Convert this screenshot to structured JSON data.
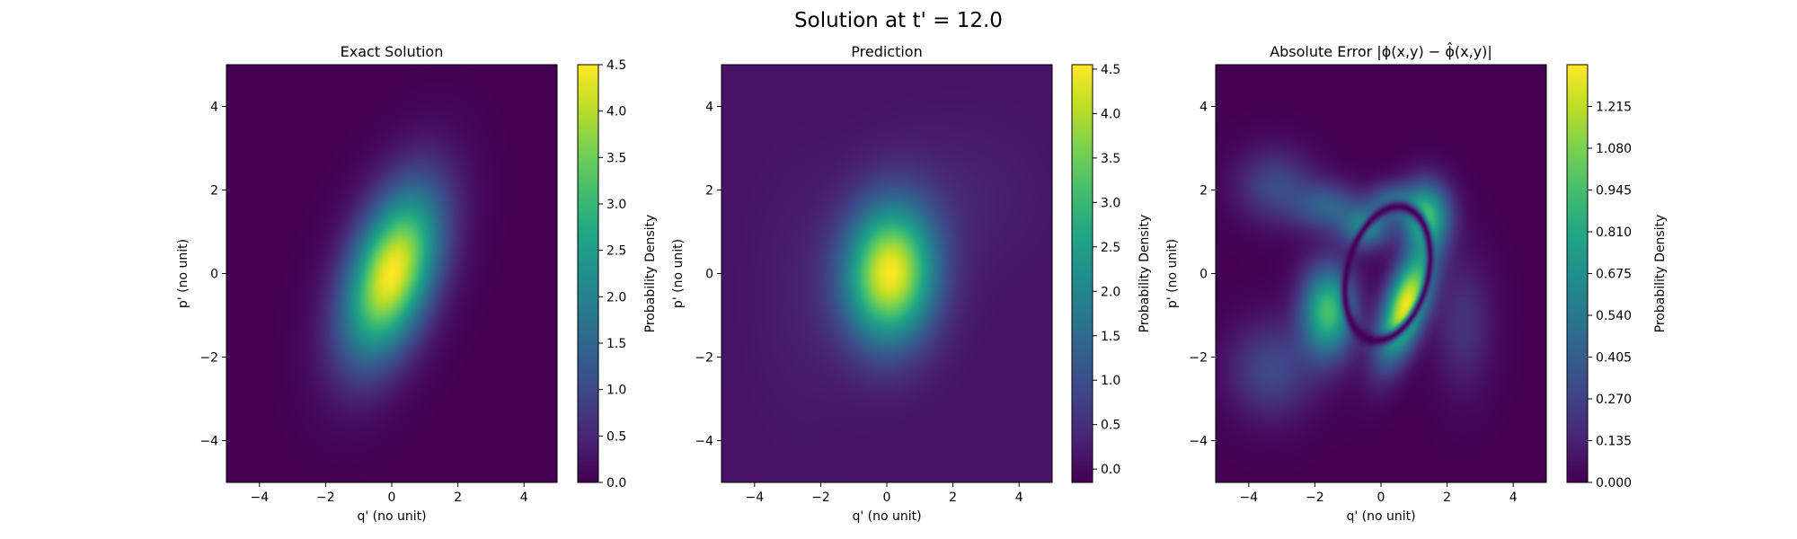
{
  "figure": {
    "suptitle": "Solution at t' = 12.0"
  },
  "chart_data": [
    {
      "type": "heatmap",
      "title": "Exact Solution",
      "xlabel": "q' (no unit)",
      "ylabel": "p' (no unit)",
      "xlim": [
        -5,
        5
      ],
      "ylim": [
        -5,
        5
      ],
      "xticks": [
        -4,
        -2,
        0,
        2,
        4
      ],
      "yticks": [
        -4,
        -2,
        0,
        2,
        4
      ],
      "xtick_labels": [
        "−4",
        "−2",
        "0",
        "2",
        "4"
      ],
      "ytick_labels": [
        "−4",
        "−2",
        "0",
        "2",
        "4"
      ],
      "colormap": "viridis",
      "colorbar": {
        "label": "Probability Density",
        "range": [
          0.0,
          4.5
        ],
        "ticks": [
          0.0,
          0.5,
          1.0,
          1.5,
          2.0,
          2.5,
          3.0,
          3.5,
          4.0,
          4.5
        ],
        "tick_labels": [
          "0.0",
          "0.5",
          "1.0",
          "1.5",
          "2.0",
          "2.5",
          "3.0",
          "3.5",
          "4.0",
          "4.5"
        ]
      },
      "field": {
        "background": 0.0,
        "blobs": [
          {
            "cx": 0.0,
            "cy": 0.0,
            "sx": 1.0,
            "sy": 1.4,
            "rho": 0.45,
            "amp": 4.5
          }
        ]
      }
    },
    {
      "type": "heatmap",
      "title": "Prediction",
      "xlabel": "q' (no unit)",
      "ylabel": "p' (no unit)",
      "xlim": [
        -5,
        5
      ],
      "ylim": [
        -5,
        5
      ],
      "xticks": [
        -4,
        -2,
        0,
        2,
        4
      ],
      "yticks": [
        -4,
        -2,
        0,
        2,
        4
      ],
      "xtick_labels": [
        "−4",
        "−2",
        "0",
        "2",
        "4"
      ],
      "ytick_labels": [
        "−4",
        "−2",
        "0",
        "2",
        "4"
      ],
      "colormap": "viridis",
      "colorbar": {
        "label": "Probability Density",
        "range": [
          -0.15,
          4.55
        ],
        "ticks": [
          0.0,
          0.5,
          1.0,
          1.5,
          2.0,
          2.5,
          3.0,
          3.5,
          4.0,
          4.5
        ],
        "tick_labels": [
          "0.0",
          "0.5",
          "1.0",
          "1.5",
          "2.0",
          "2.5",
          "3.0",
          "3.5",
          "4.0",
          "4.5"
        ]
      },
      "field": {
        "background": 0.1,
        "blobs": [
          {
            "cx": 0.1,
            "cy": 0.0,
            "sx": 0.95,
            "sy": 1.15,
            "rho": 0.05,
            "amp": 4.4
          },
          {
            "cx": 2.3,
            "cy": 1.8,
            "sx": 1.6,
            "sy": 1.2,
            "rho": 0.0,
            "amp": 0.2
          },
          {
            "cx": -2.5,
            "cy": -0.5,
            "sx": 1.0,
            "sy": 2.0,
            "rho": 0.0,
            "amp": 0.15
          }
        ]
      }
    },
    {
      "type": "heatmap",
      "title": "Absolute Error |ϕ(x,y) − ϕ̂(x,y)|",
      "xlabel": "q' (no unit)",
      "ylabel": "p' (no unit)",
      "xlim": [
        -5,
        5
      ],
      "ylim": [
        -5,
        5
      ],
      "xticks": [
        -4,
        -2,
        0,
        2,
        4
      ],
      "yticks": [
        -4,
        -2,
        0,
        2,
        4
      ],
      "xtick_labels": [
        "−4",
        "−2",
        "0",
        "2",
        "4"
      ],
      "ytick_labels": [
        "−4",
        "−2",
        "0",
        "2",
        "4"
      ],
      "colormap": "viridis",
      "colorbar": {
        "label": "Probability Density",
        "range": [
          0.0,
          1.35
        ],
        "ticks": [
          0.0,
          0.135,
          0.27,
          0.405,
          0.54,
          0.675,
          0.81,
          0.945,
          1.08,
          1.215
        ],
        "tick_labels": [
          "0.000",
          "0.135",
          "0.270",
          "0.405",
          "0.540",
          "0.675",
          "0.810",
          "0.945",
          "1.080",
          "1.215"
        ]
      },
      "field": {
        "background": 0.0,
        "blobs": [
          {
            "cx": 0.75,
            "cy": -0.75,
            "sx": 0.55,
            "sy": 0.9,
            "rho": 0.6,
            "amp": 1.32
          },
          {
            "cx": -1.6,
            "cy": -0.9,
            "sx": 0.55,
            "sy": 0.75,
            "rho": 0.0,
            "amp": 0.95
          },
          {
            "cx": 1.35,
            "cy": 1.4,
            "sx": 0.5,
            "sy": 0.55,
            "rho": 0.0,
            "amp": 0.9
          },
          {
            "cx": -0.45,
            "cy": 1.1,
            "sx": 0.5,
            "sy": 0.35,
            "rho": 0.0,
            "amp": 0.6
          },
          {
            "cx": 0.3,
            "cy": 1.75,
            "sx": 0.45,
            "sy": 0.3,
            "rho": 0.0,
            "amp": 0.4
          },
          {
            "cx": -1.6,
            "cy": 1.6,
            "sx": 0.7,
            "sy": 0.4,
            "rho": 0.0,
            "amp": 0.4
          },
          {
            "cx": -3.2,
            "cy": 2.1,
            "sx": 0.8,
            "sy": 0.6,
            "rho": 0.0,
            "amp": 0.3
          },
          {
            "cx": -3.3,
            "cy": -2.3,
            "sx": 0.9,
            "sy": 0.8,
            "rho": 0.0,
            "amp": 0.3
          },
          {
            "cx": 2.5,
            "cy": -1.2,
            "sx": 0.6,
            "sy": 1.1,
            "rho": 0.0,
            "amp": 0.2
          }
        ],
        "zero_ridge": {
          "cx": 0.2,
          "cy": 0.0,
          "a": 1.25,
          "b": 1.55,
          "rho": 0.25,
          "width": 0.09
        }
      }
    }
  ]
}
